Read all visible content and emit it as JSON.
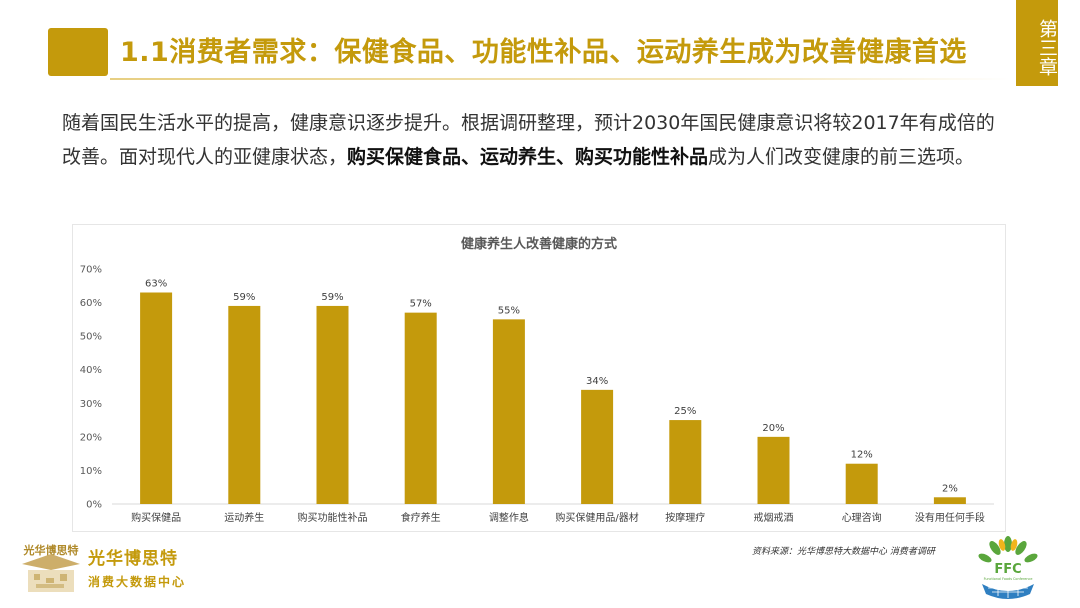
{
  "header": {
    "title": "1.1消费者需求：保健食品、功能性补品、运动养生成为改善健康首选",
    "chapter": "第三章"
  },
  "intro": {
    "part1": "随着国民生活水平的提高，健康意识逐步提升。根据调研整理，预计2030年国民健康意识将较2017年有成倍的改善。面对现代人的亚健康状态，",
    "bold": "购买保健食品、运动养生、购买功能性补品",
    "part2": "成为人们改变健康的前三选项。"
  },
  "chart_data": {
    "type": "bar",
    "title": "健康养生人改善健康的方式",
    "categories": [
      "购买保健品",
      "运动养生",
      "购买功能性补品",
      "食疗养生",
      "调整作息",
      "购买保健用品/器材",
      "按摩理疗",
      "戒烟戒酒",
      "心理咨询",
      "没有用任何手段"
    ],
    "values": [
      63,
      59,
      59,
      57,
      55,
      34,
      25,
      20,
      12,
      2
    ],
    "data_labels": [
      "63%",
      "59%",
      "59%",
      "57%",
      "55%",
      "34%",
      "25%",
      "20%",
      "12%",
      "2%"
    ],
    "ylim": [
      0,
      70
    ],
    "yticks": [
      "0%",
      "10%",
      "20%",
      "30%",
      "40%",
      "50%",
      "60%",
      "70%"
    ],
    "color": "#c49a0c",
    "grid": false,
    "legend": "none"
  },
  "footer": {
    "brand_name": "光华博思特",
    "brand_sub": "消费大数据中心",
    "source": "资料来源：光华博思特大数据中心 消费者调研",
    "logo_left_text": "光华博思特",
    "logo_right_text": "FFC",
    "logo_right_sub": "Functional Foods Conference"
  },
  "colors": {
    "accent": "#c49a0c",
    "logo_green": "#5aa63c",
    "logo_blue": "#2f7fc1"
  }
}
